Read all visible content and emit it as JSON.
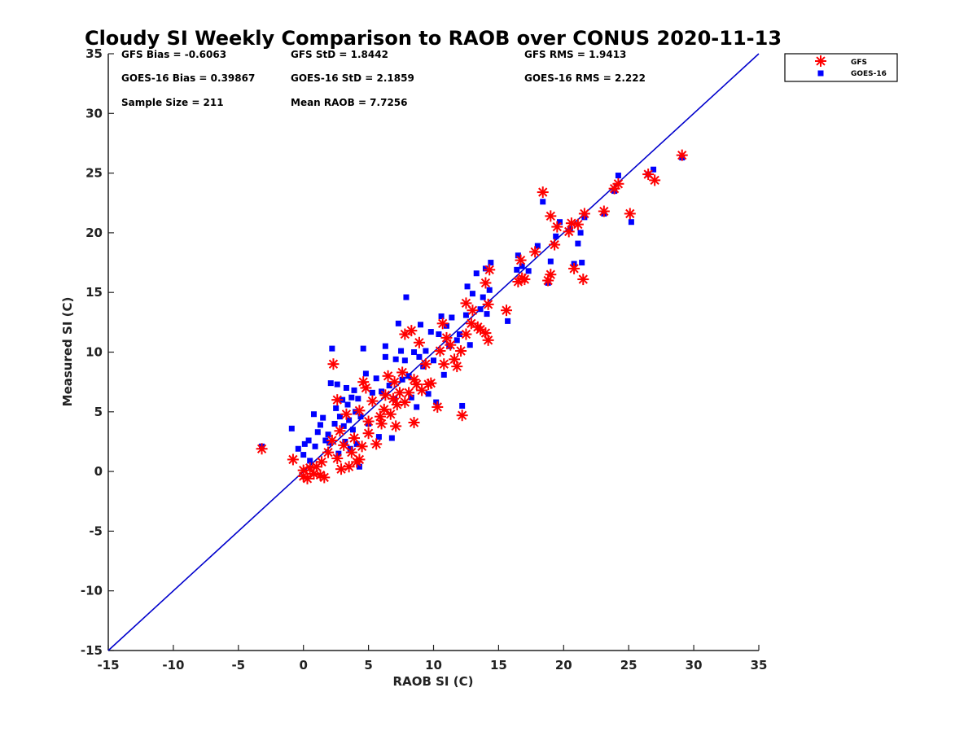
{
  "chart_data": {
    "type": "scatter",
    "title": "Cloudy SI Weekly Comparison to RAOB over CONUS 2020-11-13",
    "xlabel": "RAOB SI (C)",
    "ylabel": "Measured SI (C)",
    "xlim": [
      -15,
      35
    ],
    "ylim": [
      -15,
      35
    ],
    "xticks": [
      -15,
      -10,
      -5,
      0,
      5,
      10,
      15,
      20,
      25,
      30,
      35
    ],
    "yticks": [
      -15,
      -10,
      -5,
      0,
      5,
      10,
      15,
      20,
      25,
      30,
      35
    ],
    "reference_line": {
      "from": [
        -15,
        -15
      ],
      "to": [
        35,
        35
      ],
      "color": "#0000cc"
    },
    "stats": [
      "GFS Bias = -0.6063",
      "GFS StD = 1.8442",
      "GFS RMS = 1.9413",
      "GOES-16 Bias = 0.39867",
      "GOES-16 StD = 2.1859",
      "GOES-16 RMS = 2.222",
      "Sample Size = 211",
      "Mean RAOB = 7.7256"
    ],
    "legend_position": "top-right",
    "series": [
      {
        "name": "GFS",
        "marker": "asterisk",
        "color": "#ff0000",
        "points": [
          [
            -3.2,
            1.9
          ],
          [
            -0.8,
            1.0
          ],
          [
            0,
            0.1
          ],
          [
            0,
            -0.4
          ],
          [
            0.3,
            -0.6
          ],
          [
            0.5,
            0.3
          ],
          [
            0.8,
            -0.2
          ],
          [
            1,
            0.4
          ],
          [
            1.3,
            -0.3
          ],
          [
            1.6,
            -0.5
          ],
          [
            1.4,
            0.8
          ],
          [
            1.9,
            1.6
          ],
          [
            2.2,
            2.6
          ],
          [
            2.3,
            9
          ],
          [
            2.6,
            1.1
          ],
          [
            2.6,
            6
          ],
          [
            2.8,
            3.4
          ],
          [
            2.9,
            0.2
          ],
          [
            3.1,
            2.2
          ],
          [
            3.3,
            4.8
          ],
          [
            3.5,
            0.4
          ],
          [
            3.7,
            1.6
          ],
          [
            3.9,
            2.8
          ],
          [
            4.1,
            0.8
          ],
          [
            4.3,
            5.1
          ],
          [
            4.3,
            1
          ],
          [
            4.5,
            2.1
          ],
          [
            4.6,
            7.5
          ],
          [
            4.8,
            7
          ],
          [
            5,
            3.2
          ],
          [
            5,
            4.2
          ],
          [
            5.3,
            5.9
          ],
          [
            5.6,
            2.3
          ],
          [
            5.9,
            4.6
          ],
          [
            6,
            4
          ],
          [
            6.2,
            5.2
          ],
          [
            6.3,
            6.4
          ],
          [
            6.5,
            8
          ],
          [
            6.7,
            4.8
          ],
          [
            6.9,
            6.1
          ],
          [
            7,
            7.5
          ],
          [
            7.1,
            3.8
          ],
          [
            7.2,
            5.6
          ],
          [
            7.4,
            6.6
          ],
          [
            7.6,
            8.3
          ],
          [
            7.8,
            5.8
          ],
          [
            7.8,
            11.5
          ],
          [
            8.1,
            6.6
          ],
          [
            8.3,
            11.8
          ],
          [
            8.5,
            7.7
          ],
          [
            8.5,
            4.1
          ],
          [
            8.7,
            7.3
          ],
          [
            8.9,
            10.8
          ],
          [
            9.1,
            6.8
          ],
          [
            9.4,
            9
          ],
          [
            9.6,
            7.3
          ],
          [
            9.8,
            7.4
          ],
          [
            10.3,
            5.4
          ],
          [
            10.5,
            10.1
          ],
          [
            10.7,
            12.4
          ],
          [
            10.8,
            9
          ],
          [
            11,
            11.2
          ],
          [
            11.3,
            10.6
          ],
          [
            11.6,
            9.4
          ],
          [
            11.8,
            8.8
          ],
          [
            12.2,
            4.7
          ],
          [
            12.1,
            10.1
          ],
          [
            12.5,
            14.1
          ],
          [
            12.5,
            11.5
          ],
          [
            12.9,
            12.4
          ],
          [
            13,
            13.5
          ],
          [
            13.4,
            12.1
          ],
          [
            13.6,
            11.9
          ],
          [
            14,
            11.6
          ],
          [
            14.2,
            11
          ],
          [
            14,
            15.8
          ],
          [
            14.2,
            14
          ],
          [
            14.3,
            16.9
          ],
          [
            15.6,
            13.5
          ],
          [
            16.5,
            15.9
          ],
          [
            16.7,
            17.7
          ],
          [
            16.8,
            16.2
          ],
          [
            17,
            16.1
          ],
          [
            17.8,
            18.4
          ],
          [
            18.4,
            23.4
          ],
          [
            18.8,
            16
          ],
          [
            19,
            16.5
          ],
          [
            19.3,
            19
          ],
          [
            19,
            21.4
          ],
          [
            19.5,
            20.5
          ],
          [
            20.4,
            20.1
          ],
          [
            20.8,
            17
          ],
          [
            20.6,
            20.8
          ],
          [
            21.1,
            20.7
          ],
          [
            21.5,
            16.1
          ],
          [
            21.6,
            21.6
          ],
          [
            23.1,
            21.8
          ],
          [
            23.9,
            23.7
          ],
          [
            24.2,
            24.1
          ],
          [
            25.1,
            21.6
          ],
          [
            26.5,
            24.9
          ],
          [
            27,
            24.4
          ],
          [
            29.1,
            26.5
          ]
        ]
      },
      {
        "name": "GOES-16",
        "marker": "square",
        "color": "#0000ff",
        "points": [
          [
            -3.2,
            2.1
          ],
          [
            -0.9,
            3.6
          ],
          [
            -0.4,
            1.9
          ],
          [
            0,
            1.4
          ],
          [
            0.1,
            2.3
          ],
          [
            0.4,
            2.6
          ],
          [
            0.5,
            0.9
          ],
          [
            0.8,
            4.8
          ],
          [
            0.9,
            2.1
          ],
          [
            1.1,
            3.3
          ],
          [
            1.3,
            3.9
          ],
          [
            1.5,
            4.5
          ],
          [
            1.7,
            2.6
          ],
          [
            1.9,
            3.1
          ],
          [
            2,
            2.4
          ],
          [
            2.1,
            7.4
          ],
          [
            2.2,
            10.3
          ],
          [
            2.4,
            4
          ],
          [
            2.5,
            5.3
          ],
          [
            2.6,
            7.3
          ],
          [
            2.7,
            1.5
          ],
          [
            2.8,
            4.6
          ],
          [
            3,
            6
          ],
          [
            3.1,
            3.8
          ],
          [
            3.2,
            2.5
          ],
          [
            3.3,
            7
          ],
          [
            3.4,
            5.6
          ],
          [
            3.5,
            4.3
          ],
          [
            3.6,
            1.9
          ],
          [
            3.7,
            6.2
          ],
          [
            3.8,
            3.5
          ],
          [
            3.9,
            6.8
          ],
          [
            4,
            5
          ],
          [
            4.1,
            2.3
          ],
          [
            4.2,
            6.1
          ],
          [
            4.3,
            0.4
          ],
          [
            4.4,
            4.6
          ],
          [
            4.6,
            10.3
          ],
          [
            4.8,
            8.2
          ],
          [
            5,
            4
          ],
          [
            5.3,
            6.6
          ],
          [
            5.6,
            7.8
          ],
          [
            5.8,
            2.9
          ],
          [
            6,
            6.7
          ],
          [
            6.3,
            9.6
          ],
          [
            6.3,
            10.5
          ],
          [
            6.6,
            7.2
          ],
          [
            6.8,
            2.8
          ],
          [
            7,
            6.1
          ],
          [
            7.1,
            9.4
          ],
          [
            7.3,
            12.4
          ],
          [
            7.5,
            10.1
          ],
          [
            7.6,
            7.7
          ],
          [
            7.8,
            9.3
          ],
          [
            7.9,
            14.6
          ],
          [
            8.1,
            8
          ],
          [
            8.3,
            6.2
          ],
          [
            8.5,
            10
          ],
          [
            8.7,
            5.4
          ],
          [
            8.9,
            9.6
          ],
          [
            9,
            12.3
          ],
          [
            9.2,
            8.8
          ],
          [
            9.4,
            10.1
          ],
          [
            9.6,
            6.5
          ],
          [
            9.8,
            11.7
          ],
          [
            10,
            9.3
          ],
          [
            10.2,
            5.8
          ],
          [
            10.4,
            11.5
          ],
          [
            10.6,
            13
          ],
          [
            10.8,
            8.1
          ],
          [
            11,
            12.2
          ],
          [
            11.2,
            10.5
          ],
          [
            11.4,
            12.9
          ],
          [
            11.8,
            11
          ],
          [
            12,
            11.5
          ],
          [
            12.2,
            5.5
          ],
          [
            12.5,
            13.1
          ],
          [
            12.6,
            15.5
          ],
          [
            12.8,
            10.6
          ],
          [
            13,
            14.9
          ],
          [
            13.3,
            16.6
          ],
          [
            13.6,
            13.6
          ],
          [
            13.8,
            14.6
          ],
          [
            14,
            17
          ],
          [
            14.1,
            13.2
          ],
          [
            14.3,
            15.2
          ],
          [
            14.4,
            17.5
          ],
          [
            15.7,
            12.6
          ],
          [
            16.4,
            16.9
          ],
          [
            16.5,
            18.1
          ],
          [
            16.8,
            17.2
          ],
          [
            17.3,
            16.8
          ],
          [
            18,
            18.9
          ],
          [
            18.4,
            22.6
          ],
          [
            18.8,
            15.8
          ],
          [
            19,
            17.6
          ],
          [
            19.4,
            19.7
          ],
          [
            19.7,
            20.9
          ],
          [
            20.5,
            20.3
          ],
          [
            20.8,
            17.4
          ],
          [
            21.1,
            19.1
          ],
          [
            21.3,
            20
          ],
          [
            21.4,
            17.5
          ],
          [
            21.6,
            21.3
          ],
          [
            23.1,
            21.6
          ],
          [
            23.9,
            23.5
          ],
          [
            24.2,
            24.8
          ],
          [
            25.2,
            20.9
          ],
          [
            26.5,
            24.9
          ],
          [
            26.9,
            25.3
          ],
          [
            29.1,
            26.3
          ]
        ]
      }
    ]
  }
}
